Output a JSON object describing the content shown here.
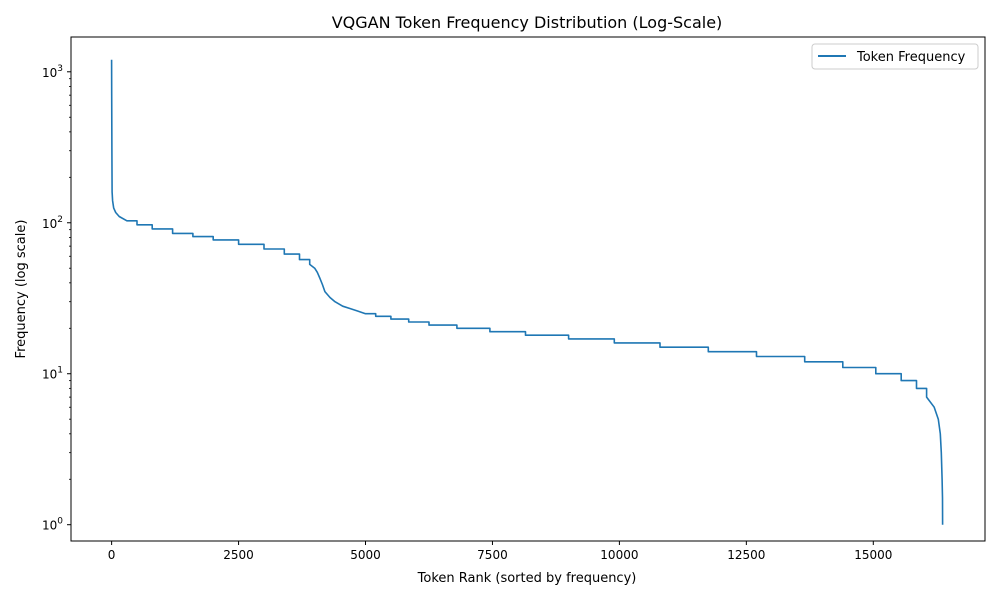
{
  "chart_data": {
    "type": "line",
    "title": "VQGAN Token Frequency Distribution (Log-Scale)",
    "xlabel": "Token Rank (sorted by frequency)",
    "ylabel": "Frequency (log scale)",
    "yscale": "log",
    "xlim": [
      -800,
      17200
    ],
    "ylim": [
      0.78,
      1700
    ],
    "x_ticks": [
      0,
      2500,
      5000,
      7500,
      10000,
      12500,
      15000
    ],
    "x_tick_labels": [
      "0",
      "2500",
      "5000",
      "7500",
      "10000",
      "12500",
      "15000"
    ],
    "y_ticks": [
      1,
      10,
      100,
      1000
    ],
    "y_tick_labels": [
      {
        "base": "10",
        "exp": "0"
      },
      {
        "base": "10",
        "exp": "1"
      },
      {
        "base": "10",
        "exp": "2"
      },
      {
        "base": "10",
        "exp": "3"
      }
    ],
    "grid": false,
    "legend_position": "top-right",
    "color": "#1f77b4",
    "series": [
      {
        "name": "Token Frequency",
        "x": [
          0,
          2,
          5,
          10,
          20,
          40,
          80,
          150,
          300,
          500,
          800,
          1200,
          1600,
          2000,
          2500,
          3000,
          3400,
          3700,
          3900,
          4000,
          4050,
          4100,
          4150,
          4200,
          4300,
          4400,
          4550,
          4700,
          4850,
          5000,
          5200,
          5500,
          5850,
          6250,
          6800,
          7450,
          8150,
          9000,
          9900,
          10800,
          11750,
          12700,
          13650,
          14400,
          15050,
          15550,
          15850,
          16050,
          16200,
          16280,
          16320,
          16340,
          16355,
          16363,
          16365
        ],
        "y": [
          1200,
          700,
          300,
          160,
          140,
          125,
          117,
          110,
          103,
          97,
          91,
          85,
          81,
          77,
          72,
          67,
          62,
          57,
          53,
          50,
          47,
          43,
          39,
          35,
          32,
          30,
          28,
          27,
          26,
          25,
          24,
          23,
          22,
          21,
          20,
          19,
          18,
          17,
          16,
          15,
          14,
          13,
          12,
          11,
          10,
          9,
          8,
          7,
          6,
          5,
          4,
          3,
          2,
          1.5,
          1
        ]
      }
    ]
  }
}
